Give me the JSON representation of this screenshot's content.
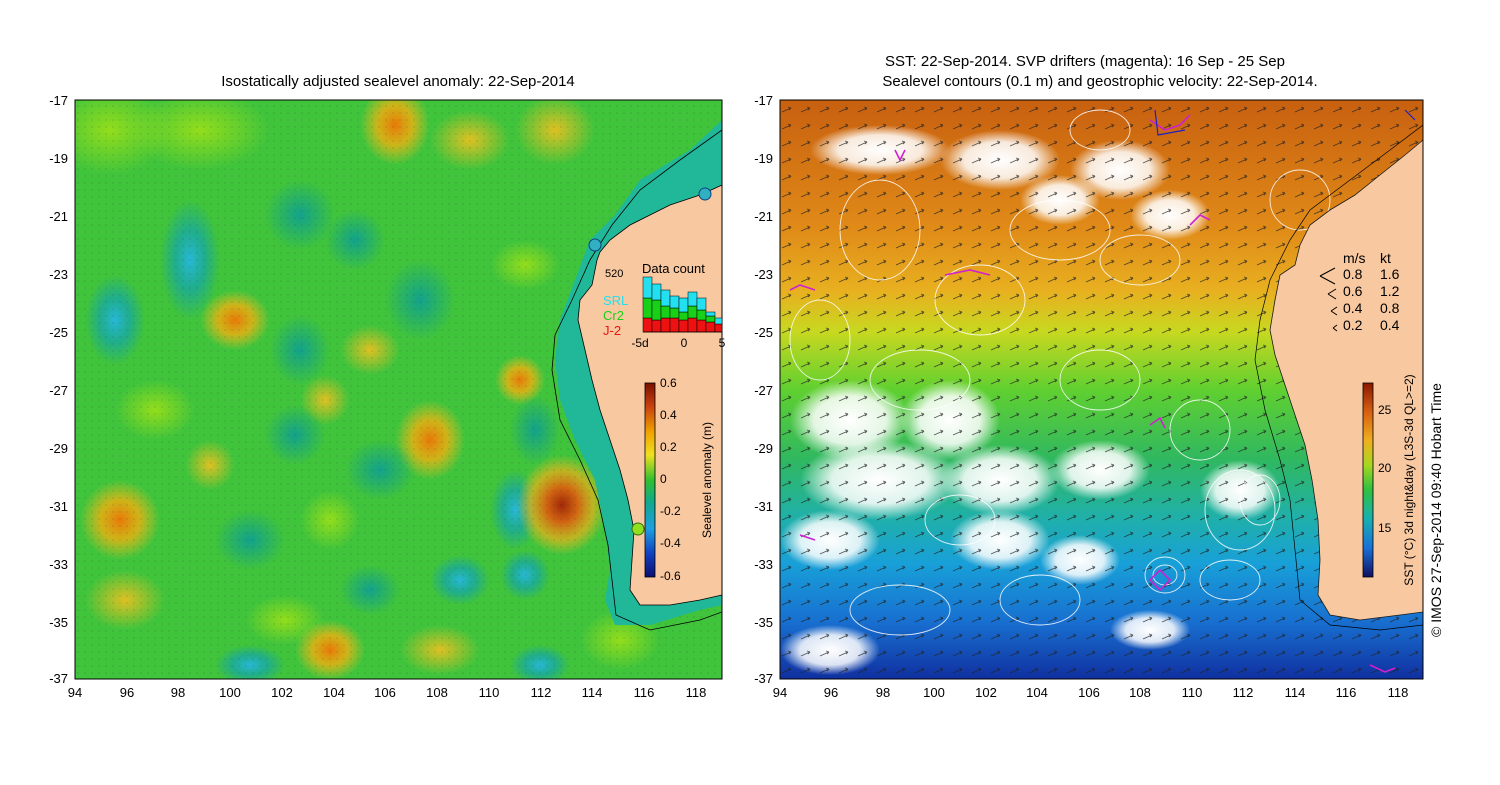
{
  "left_panel": {
    "title": "Isostatically adjusted sealevel anomaly: 22-Sep-2014",
    "lat_ticks": [
      "-17",
      "-19",
      "-21",
      "-23",
      "-25",
      "-27",
      "-29",
      "-31",
      "-33",
      "-35",
      "-37"
    ],
    "lon_ticks": [
      "94",
      "96",
      "98",
      "100",
      "102",
      "104",
      "106",
      "108",
      "110",
      "112",
      "114",
      "116",
      "118"
    ],
    "colorbar": {
      "label": "Sealevel anomaly (m)",
      "ticks": [
        "0.6",
        "0.4",
        "0.2",
        "0",
        "-0.2",
        "-0.4",
        "-0.6"
      ]
    },
    "data_count": {
      "title": "Data count",
      "max_label": "520",
      "legend": [
        {
          "name": "SRL",
          "color": "#22e0f0"
        },
        {
          "name": "Cr2",
          "color": "#18d018"
        },
        {
          "name": "J-2",
          "color": "#ee1111"
        }
      ],
      "x_ticks": [
        "-5d",
        "0",
        "5"
      ]
    }
  },
  "right_panel": {
    "title_line1": "SST: 22-Sep-2014. SVP drifters (magenta): 16 Sep - 25 Sep",
    "title_line2": "Sealevel contours (0.1 m) and geostrophic velocity: 22-Sep-2014.",
    "lat_ticks": [
      "-17",
      "-19",
      "-21",
      "-23",
      "-25",
      "-27",
      "-29",
      "-31",
      "-33",
      "-35",
      "-37"
    ],
    "lon_ticks": [
      "94",
      "96",
      "98",
      "100",
      "102",
      "104",
      "106",
      "108",
      "110",
      "112",
      "114",
      "116",
      "118"
    ],
    "colorbar": {
      "label": "SST (°C) 3d night&day (L3S-3d QL>=2)",
      "ticks": [
        "25",
        "20",
        "15"
      ]
    },
    "velocity_legend": {
      "header_ms": "m/s",
      "header_kt": "kt",
      "rows": [
        {
          "ms": "0.8",
          "kt": "1.6"
        },
        {
          "ms": "0.6",
          "kt": "1.2"
        },
        {
          "ms": "0.4",
          "kt": "0.8"
        },
        {
          "ms": "0.2",
          "kt": "0.4"
        }
      ]
    }
  },
  "credit": "© IMOS 27-Sep-2014 09:40 Hobart Time",
  "colors": {
    "land": "#f8c8a0",
    "sla_green": "#3cc840",
    "sla_light": "#88d818",
    "sla_teal": "#18b088",
    "sla_yellow": "#f0d820",
    "sla_orange": "#f0a000",
    "sla_red": "#c83a10"
  }
}
